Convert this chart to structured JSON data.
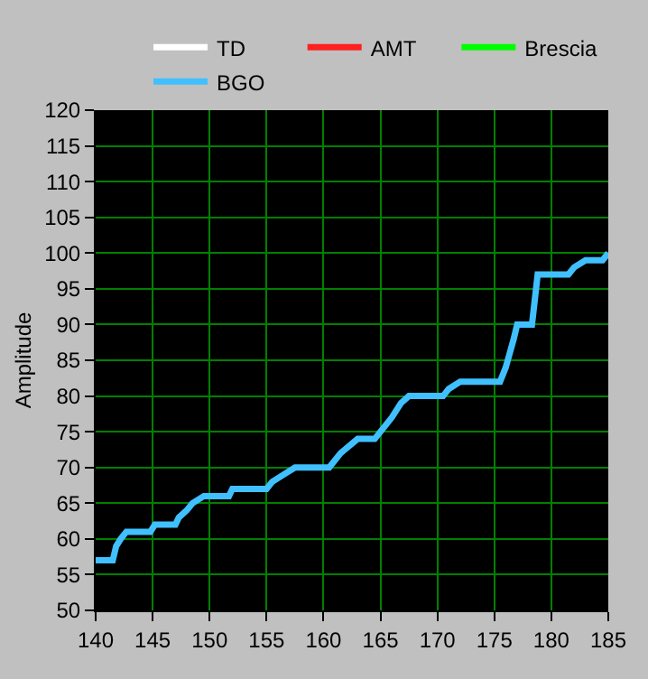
{
  "chart_data": {
    "type": "line",
    "ylabel": "Amplitude",
    "xlim": [
      140,
      185
    ],
    "ylim": [
      50,
      120
    ],
    "xticks": [
      140,
      145,
      150,
      155,
      160,
      165,
      170,
      175,
      180,
      185
    ],
    "yticks": [
      50,
      55,
      60,
      65,
      70,
      75,
      80,
      85,
      90,
      95,
      100,
      105,
      110,
      115,
      120
    ],
    "grid": true,
    "legend": "top",
    "marker": "none",
    "line_style": "solid",
    "series": [
      {
        "name": "TD",
        "color": "#ffffff"
      },
      {
        "name": "AMT",
        "color": "#ff2020"
      },
      {
        "name": "Brescia",
        "color": "#00ff00"
      },
      {
        "name": "BGO",
        "color": "#40c0ff",
        "x": [
          140,
          141.5,
          141.8,
          142.2,
          142.7,
          144.8,
          145.2,
          147,
          147.3,
          148,
          148.5,
          149.5,
          151.7,
          152,
          155,
          155.5,
          156.5,
          157.5,
          160.5,
          161.5,
          163,
          164.5,
          165,
          166,
          166.8,
          167.5,
          170.5,
          171,
          172,
          175.5,
          176,
          176.7,
          177,
          178.3,
          178.8,
          181.5,
          182,
          183,
          184.5,
          185
        ],
        "values": [
          57,
          57,
          59,
          60,
          61,
          61,
          62,
          62,
          63,
          64,
          65,
          66,
          66,
          67,
          67,
          68,
          69,
          70,
          70,
          72,
          74,
          74,
          75,
          77,
          79,
          80,
          80,
          81,
          82,
          82,
          84,
          88,
          90,
          90,
          97,
          97,
          98,
          99,
          99,
          100
        ]
      }
    ]
  }
}
